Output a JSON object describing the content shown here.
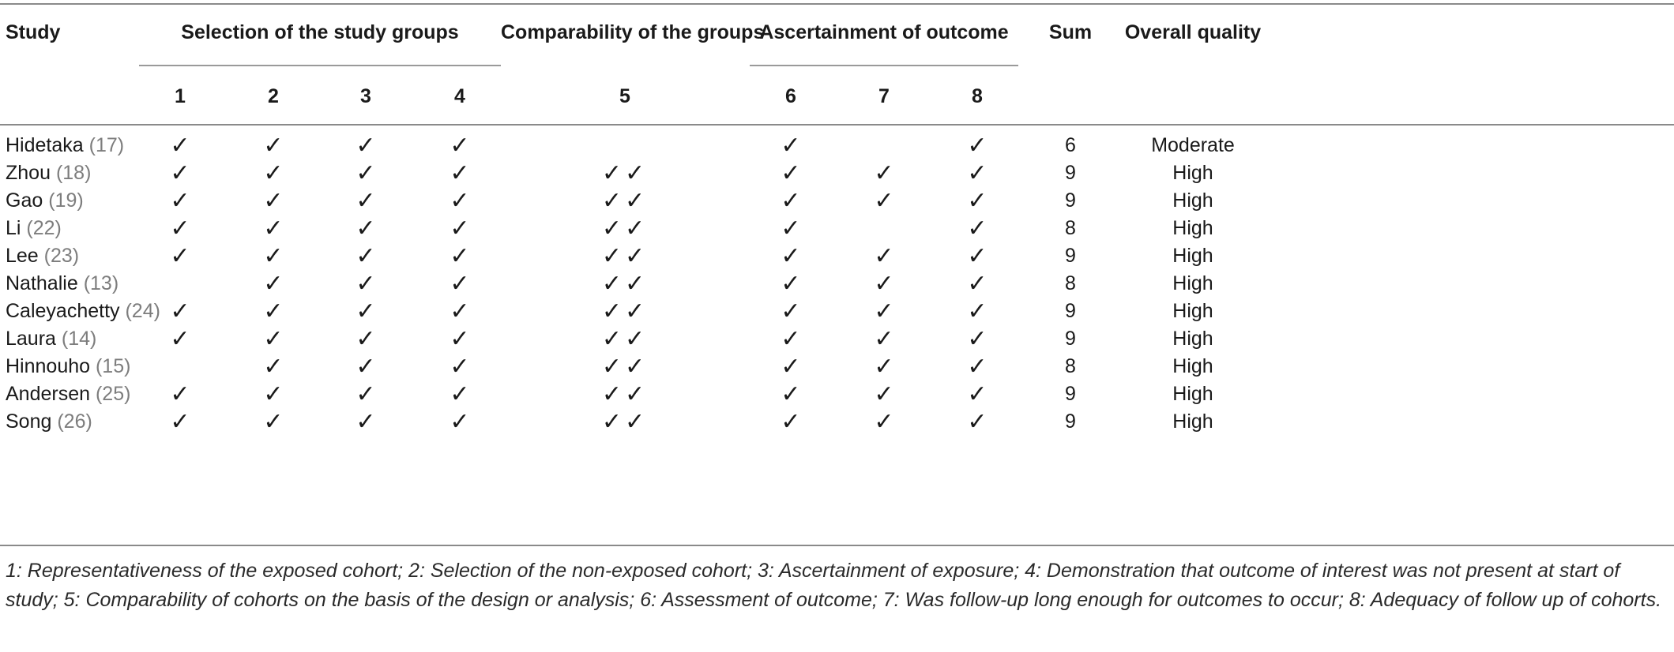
{
  "table": {
    "headers": {
      "study": "Study",
      "selection": "Selection of the study groups",
      "comparability": "Comparability of the groups",
      "ascertainment": "Ascertainment of outcome",
      "sum": "Sum",
      "overall_quality": "Overall quality",
      "item_numbers": [
        "1",
        "2",
        "3",
        "4",
        "5",
        "6",
        "7",
        "8"
      ]
    },
    "rows": [
      {
        "name": "Hidetaka",
        "ref": "(17)",
        "c1": "✓",
        "c2": "✓",
        "c3": "✓",
        "c4": "✓",
        "c5": "",
        "c6": "✓",
        "c7": "",
        "c8": "✓",
        "sum": "6",
        "quality": "Moderate"
      },
      {
        "name": "Zhou",
        "ref": "(18)",
        "c1": "✓",
        "c2": "✓",
        "c3": "✓",
        "c4": "✓",
        "c5": "✓✓",
        "c6": "✓",
        "c7": "✓",
        "c8": "✓",
        "sum": "9",
        "quality": "High"
      },
      {
        "name": "Gao",
        "ref": "(19)",
        "c1": "✓",
        "c2": "✓",
        "c3": "✓",
        "c4": "✓",
        "c5": "✓✓",
        "c6": "✓",
        "c7": "✓",
        "c8": "✓",
        "sum": "9",
        "quality": "High"
      },
      {
        "name": "Li",
        "ref": "(22)",
        "c1": "✓",
        "c2": "✓",
        "c3": "✓",
        "c4": "✓",
        "c5": "✓✓",
        "c6": "✓",
        "c7": "",
        "c8": "✓",
        "sum": "8",
        "quality": "High"
      },
      {
        "name": "Lee",
        "ref": "(23)",
        "c1": "✓",
        "c2": "✓",
        "c3": "✓",
        "c4": "✓",
        "c5": "✓✓",
        "c6": "✓",
        "c7": "✓",
        "c8": "✓",
        "sum": "9",
        "quality": "High"
      },
      {
        "name": "Nathalie",
        "ref": "(13)",
        "c1": "",
        "c2": "✓",
        "c3": "✓",
        "c4": "✓",
        "c5": "✓✓",
        "c6": "✓",
        "c7": "✓",
        "c8": "✓",
        "sum": "8",
        "quality": "High"
      },
      {
        "name": "Caleyachetty",
        "ref": "(24)",
        "c1": "✓",
        "c2": "✓",
        "c3": "✓",
        "c4": "✓",
        "c5": "✓✓",
        "c6": "✓",
        "c7": "✓",
        "c8": "✓",
        "sum": "9",
        "quality": "High"
      },
      {
        "name": "Laura",
        "ref": "(14)",
        "c1": "✓",
        "c2": "✓",
        "c3": "✓",
        "c4": "✓",
        "c5": "✓✓",
        "c6": "✓",
        "c7": "✓",
        "c8": "✓",
        "sum": "9",
        "quality": "High"
      },
      {
        "name": "Hinnouho",
        "ref": "(15)",
        "c1": "",
        "c2": "✓",
        "c3": "✓",
        "c4": "✓",
        "c5": "✓✓",
        "c6": "✓",
        "c7": "✓",
        "c8": "✓",
        "sum": "8",
        "quality": "High"
      },
      {
        "name": "Andersen",
        "ref": "(25)",
        "c1": "✓",
        "c2": "✓",
        "c3": "✓",
        "c4": "✓",
        "c5": "✓✓",
        "c6": "✓",
        "c7": "✓",
        "c8": "✓",
        "sum": "9",
        "quality": "High"
      },
      {
        "name": "Song",
        "ref": "(26)",
        "c1": "✓",
        "c2": "✓",
        "c3": "✓",
        "c4": "✓",
        "c5": "✓✓",
        "c6": "✓",
        "c7": "✓",
        "c8": "✓",
        "sum": "9",
        "quality": "High"
      }
    ],
    "footnote": "1: Representativeness of the exposed cohort; 2: Selection of the non-exposed cohort; 3: Ascertainment of exposure; 4: Demonstration that outcome of interest was not present at start of study; 5: Comparability of cohorts on the basis of the design or analysis; 6: Assessment of outcome; 7: Was follow-up long enough for outcomes to occur; 8: Adequacy of follow up of cohorts."
  }
}
